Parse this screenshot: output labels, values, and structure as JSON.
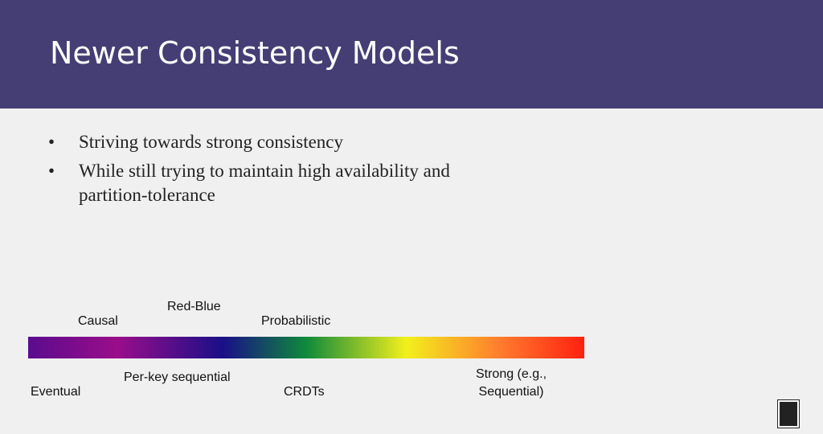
{
  "header": {
    "title": "Newer Consistency Models"
  },
  "bullets": [
    "Striving towards strong consistency",
    "While still trying to maintain high availability and partition-tolerance"
  ],
  "spectrum": {
    "labels_above": [
      "Causal",
      "Red-Blue",
      "Probabilistic"
    ],
    "labels_below": [
      "Eventual",
      "Per-key sequential",
      "CRDTs",
      "Strong (e.g., Sequential)"
    ]
  }
}
